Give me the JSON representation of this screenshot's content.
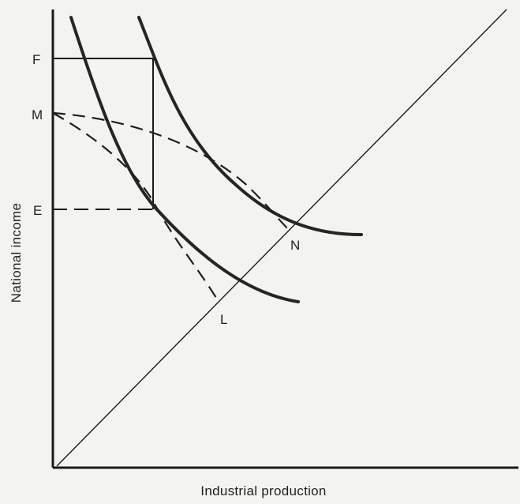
{
  "diagram": {
    "x_axis_label": "Industrial production",
    "y_axis_label": "National income",
    "point_labels": {
      "F": "F",
      "M": "M",
      "E": "E",
      "N": "N",
      "L": "L"
    }
  }
}
